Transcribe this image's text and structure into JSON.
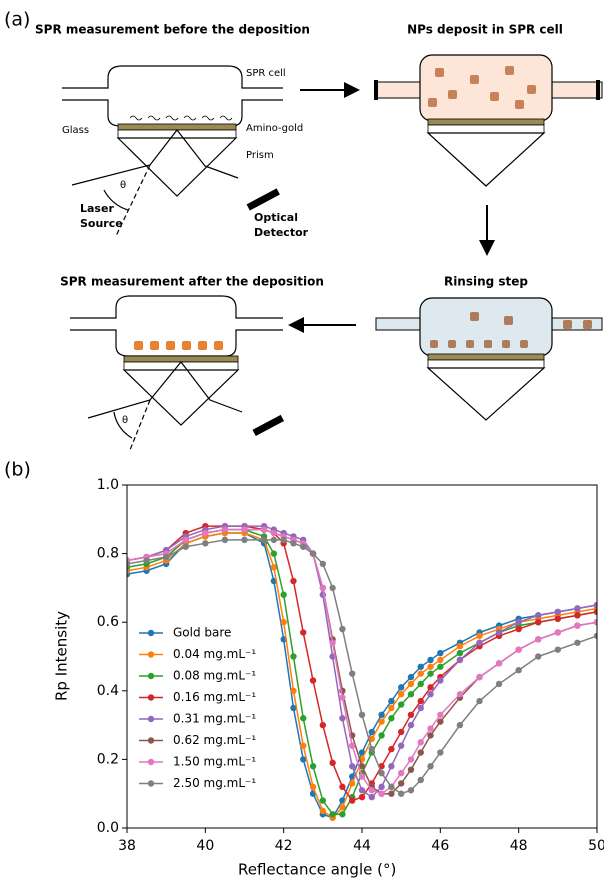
{
  "panel_a": {
    "label": "(a)",
    "steps": [
      "SPR measurement before the deposition",
      "NPs deposit in SPR cell",
      "Rinsing step",
      "SPR measurement after the deposition"
    ],
    "parts": {
      "cell": "SPR cell",
      "gold": "Amino-gold",
      "glass": "Glass",
      "prism": "Prism",
      "angle": "θ",
      "laser_source": [
        "Laser",
        "Source"
      ],
      "optical_detector": [
        "Optical",
        "Detector"
      ]
    }
  },
  "panel_b": {
    "label": "(b)"
  },
  "chart_data": {
    "type": "line",
    "xlabel": "Reflectance angle (°)",
    "ylabel": "Rp Intensity",
    "xlim": [
      38,
      50
    ],
    "ylim": [
      0,
      1
    ],
    "xticks": [
      38,
      40,
      42,
      44,
      46,
      48,
      50
    ],
    "yticks": [
      {
        "value": 0,
        "label": "0.0"
      },
      {
        "value": 0.2,
        "label": "0.2"
      },
      {
        "value": 0.4,
        "label": "0.4"
      },
      {
        "value": 0.6,
        "label": "0.6"
      },
      {
        "value": 0.8,
        "label": "0.8"
      },
      {
        "value": 1,
        "label": "1.0"
      }
    ],
    "legend": "lower left",
    "x": [
      38,
      38.5,
      39,
      39.5,
      40,
      40.5,
      41,
      41.5,
      41.75,
      42,
      42.25,
      42.5,
      42.75,
      43,
      43.25,
      43.5,
      43.75,
      44,
      44.25,
      44.5,
      44.75,
      45,
      45.25,
      45.5,
      45.75,
      46,
      46.5,
      47,
      47.5,
      48,
      48.5,
      49,
      49.5,
      50
    ],
    "series": [
      {
        "name": "Gold bare",
        "color": "#1f77b4",
        "values": [
          0.74,
          0.75,
          0.77,
          0.83,
          0.85,
          0.86,
          0.86,
          0.83,
          0.72,
          0.55,
          0.35,
          0.2,
          0.1,
          0.04,
          0.03,
          0.08,
          0.15,
          0.22,
          0.28,
          0.33,
          0.37,
          0.41,
          0.44,
          0.47,
          0.49,
          0.51,
          0.54,
          0.57,
          0.59,
          0.61,
          0.62,
          0.63,
          0.64,
          0.65
        ]
      },
      {
        "name": "0.04 mg.mL⁻¹",
        "color": "#ff7f0e",
        "values": [
          0.75,
          0.76,
          0.78,
          0.83,
          0.85,
          0.86,
          0.86,
          0.84,
          0.76,
          0.6,
          0.4,
          0.24,
          0.12,
          0.05,
          0.03,
          0.06,
          0.13,
          0.2,
          0.26,
          0.31,
          0.35,
          0.39,
          0.42,
          0.45,
          0.47,
          0.49,
          0.53,
          0.56,
          0.58,
          0.6,
          0.61,
          0.62,
          0.63,
          0.64
        ]
      },
      {
        "name": "0.08 mg.mL⁻¹",
        "color": "#2ca02c",
        "values": [
          0.76,
          0.77,
          0.79,
          0.84,
          0.86,
          0.87,
          0.87,
          0.85,
          0.8,
          0.68,
          0.5,
          0.32,
          0.18,
          0.08,
          0.04,
          0.04,
          0.09,
          0.16,
          0.22,
          0.27,
          0.32,
          0.36,
          0.39,
          0.42,
          0.45,
          0.47,
          0.51,
          0.54,
          0.57,
          0.59,
          0.6,
          0.61,
          0.62,
          0.63
        ]
      },
      {
        "name": "0.16 mg.mL⁻¹",
        "color": "#d62728",
        "values": [
          0.78,
          0.79,
          0.81,
          0.86,
          0.88,
          0.88,
          0.88,
          0.87,
          0.86,
          0.83,
          0.72,
          0.57,
          0.43,
          0.3,
          0.19,
          0.12,
          0.08,
          0.09,
          0.13,
          0.18,
          0.23,
          0.28,
          0.33,
          0.37,
          0.41,
          0.44,
          0.49,
          0.53,
          0.56,
          0.58,
          0.6,
          0.61,
          0.62,
          0.63
        ]
      },
      {
        "name": "0.31 mg.mL⁻¹",
        "color": "#9467bd",
        "values": [
          0.78,
          0.79,
          0.81,
          0.85,
          0.87,
          0.88,
          0.88,
          0.88,
          0.87,
          0.86,
          0.85,
          0.84,
          0.8,
          0.68,
          0.5,
          0.32,
          0.18,
          0.11,
          0.09,
          0.12,
          0.18,
          0.24,
          0.3,
          0.35,
          0.39,
          0.43,
          0.49,
          0.54,
          0.57,
          0.6,
          0.62,
          0.63,
          0.64,
          0.65
        ]
      },
      {
        "name": "0.62 mg.mL⁻¹",
        "color": "#8c564b",
        "values": [
          0.78,
          0.79,
          0.8,
          0.84,
          0.86,
          0.87,
          0.87,
          0.87,
          0.86,
          0.85,
          0.84,
          0.83,
          0.8,
          0.7,
          0.55,
          0.4,
          0.27,
          0.18,
          0.12,
          0.1,
          0.1,
          0.13,
          0.17,
          0.22,
          0.27,
          0.31,
          0.38,
          0.44,
          0.48,
          0.52,
          0.55,
          0.57,
          0.59,
          0.6
        ]
      },
      {
        "name": "1.50 mg.mL⁻¹",
        "color": "#e377c2",
        "values": [
          0.78,
          0.79,
          0.8,
          0.84,
          0.86,
          0.87,
          0.87,
          0.87,
          0.86,
          0.85,
          0.84,
          0.83,
          0.8,
          0.7,
          0.54,
          0.38,
          0.24,
          0.15,
          0.11,
          0.1,
          0.12,
          0.16,
          0.2,
          0.25,
          0.29,
          0.33,
          0.39,
          0.44,
          0.48,
          0.52,
          0.55,
          0.57,
          0.59,
          0.6
        ]
      },
      {
        "name": "2.50 mg.mL⁻¹",
        "color": "#7f7f7f",
        "values": [
          0.77,
          0.78,
          0.79,
          0.82,
          0.83,
          0.84,
          0.84,
          0.84,
          0.84,
          0.84,
          0.83,
          0.82,
          0.8,
          0.77,
          0.7,
          0.58,
          0.45,
          0.33,
          0.23,
          0.16,
          0.12,
          0.1,
          0.11,
          0.14,
          0.18,
          0.22,
          0.3,
          0.37,
          0.42,
          0.46,
          0.5,
          0.52,
          0.54,
          0.56
        ]
      }
    ]
  }
}
